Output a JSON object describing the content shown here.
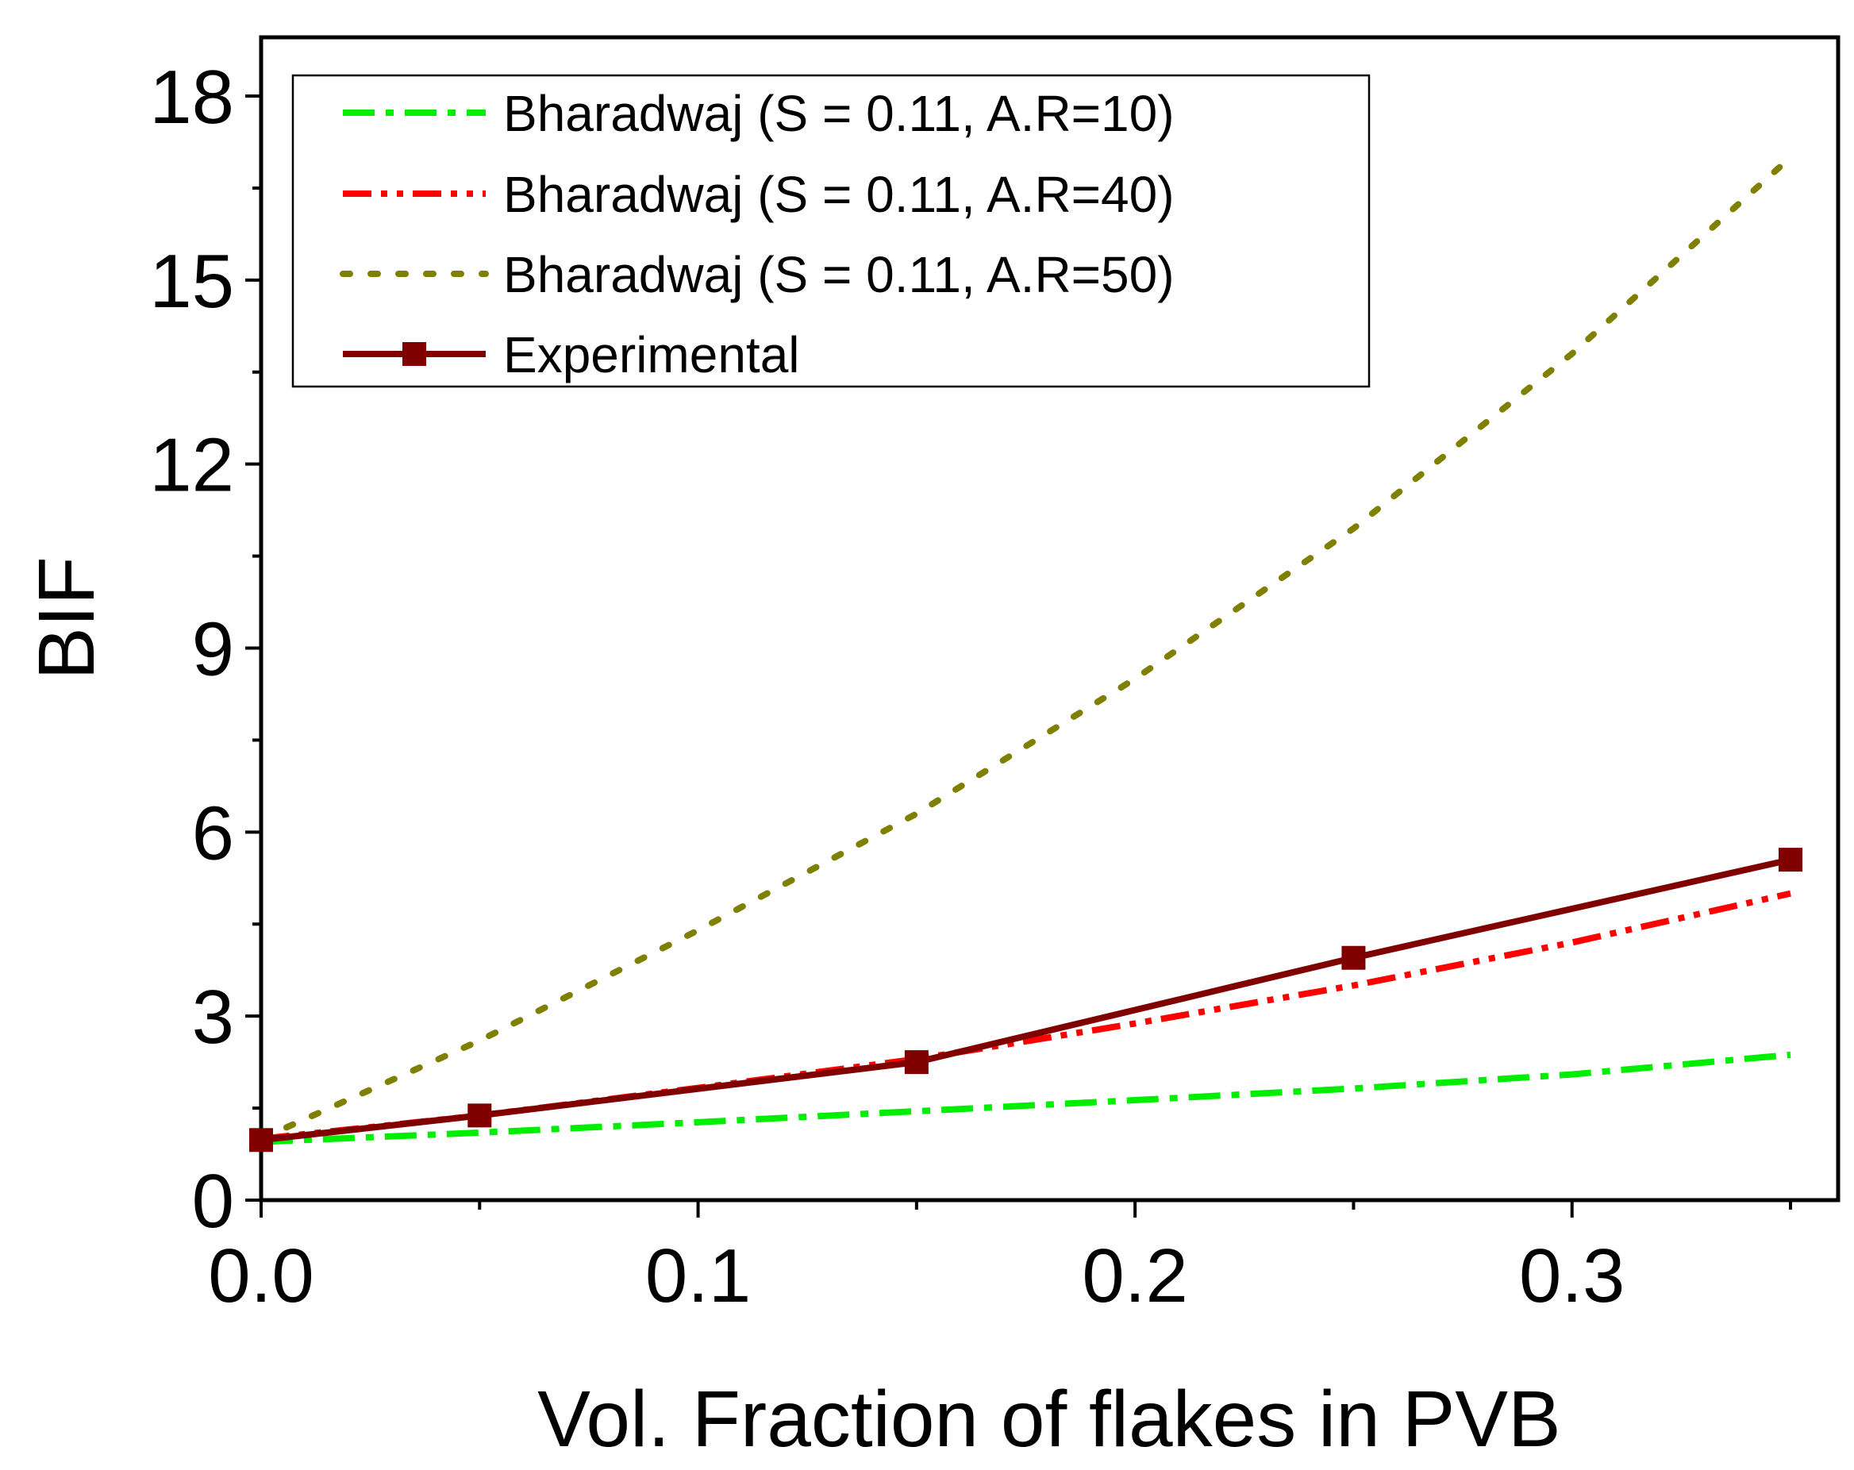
{
  "chart_data": {
    "type": "line",
    "title": "",
    "xlabel": "Vol. Fraction of flakes in PVB",
    "ylabel": "BIF",
    "xlim": [
      0.0,
      0.36
    ],
    "ylim": [
      0,
      19
    ],
    "x_ticks": [
      0.0,
      0.1,
      0.2,
      0.3
    ],
    "x_tick_labels": [
      "0.0",
      "0.1",
      "0.2",
      "0.3"
    ],
    "x_minor_ticks": [
      0.05,
      0.15,
      0.25,
      0.35
    ],
    "y_ticks": [
      0,
      3,
      6,
      9,
      12,
      15,
      18
    ],
    "y_tick_labels": [
      "0",
      "3",
      "6",
      "9",
      "12",
      "15",
      "18"
    ],
    "y_minor_ticks": [
      1.5,
      4.5,
      7.5,
      10.5,
      13.5,
      16.5
    ],
    "grid": false,
    "legend_position": "top-left",
    "series": [
      {
        "name": "Bharadwaj (S = 0.11, A.R=10)",
        "color": "#00ee00",
        "style": "dash-dot",
        "x": [
          0.0,
          0.05,
          0.1,
          0.15,
          0.2,
          0.25,
          0.3,
          0.35
        ],
        "y": [
          0.95,
          1.1,
          1.27,
          1.45,
          1.63,
          1.82,
          2.05,
          2.37
        ]
      },
      {
        "name": "Bharadwaj (S = 0.11, A.R=40)",
        "color": "#ff0000",
        "style": "dash-dot-dot",
        "x": [
          0.0,
          0.05,
          0.1,
          0.15,
          0.2,
          0.25,
          0.3,
          0.35
        ],
        "y": [
          1.0,
          1.38,
          1.83,
          2.3,
          2.88,
          3.5,
          4.2,
          5.0
        ]
      },
      {
        "name": "Bharadwaj (S = 0.11, A.R=50)",
        "color": "#808000",
        "style": "dot",
        "x": [
          0.0,
          0.05,
          0.1,
          0.15,
          0.2,
          0.25,
          0.3,
          0.35
        ],
        "y": [
          1.0,
          2.6,
          4.4,
          6.3,
          8.5,
          10.95,
          13.8,
          17.0
        ]
      },
      {
        "name": "Experimental",
        "color": "#800000",
        "style": "solid-square-markers",
        "x": [
          0.0,
          0.05,
          0.15,
          0.25,
          0.35
        ],
        "y": [
          0.98,
          1.38,
          2.25,
          3.95,
          5.55
        ]
      }
    ]
  }
}
